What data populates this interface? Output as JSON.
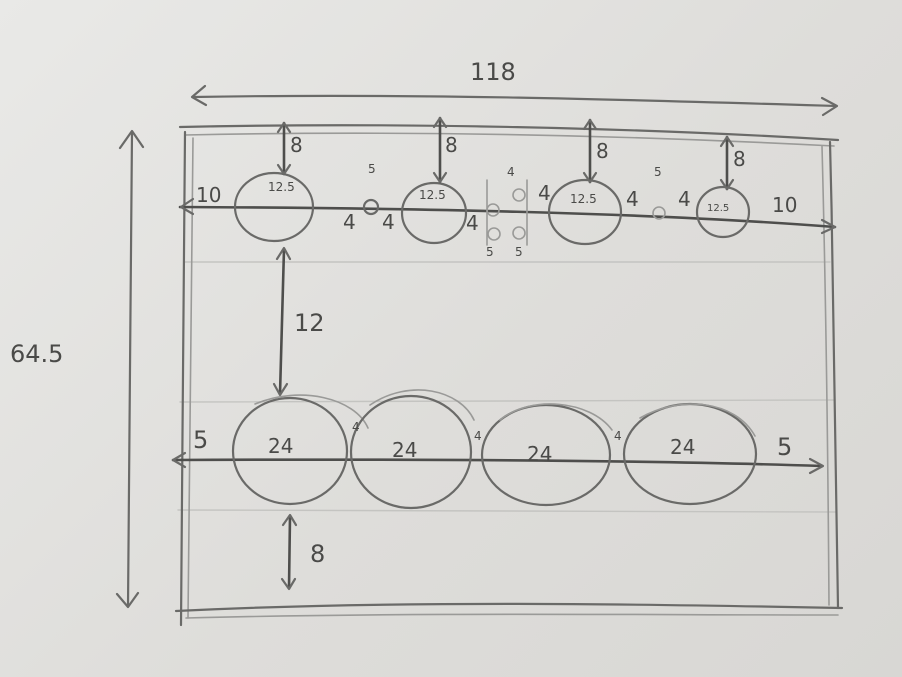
{
  "overall": {
    "width": "118",
    "height": "64.5"
  },
  "top_row": {
    "edge_left": "10",
    "edge_right": "10",
    "circle_diameter": "12.5",
    "top_margin": "8",
    "gap": "4",
    "small_diameter": "5"
  },
  "row_gap": "12",
  "bottom_row": {
    "edge_left": "5",
    "edge_right": "5",
    "circle_diameter": "24",
    "gap": "4",
    "bottom_margin": "8"
  }
}
